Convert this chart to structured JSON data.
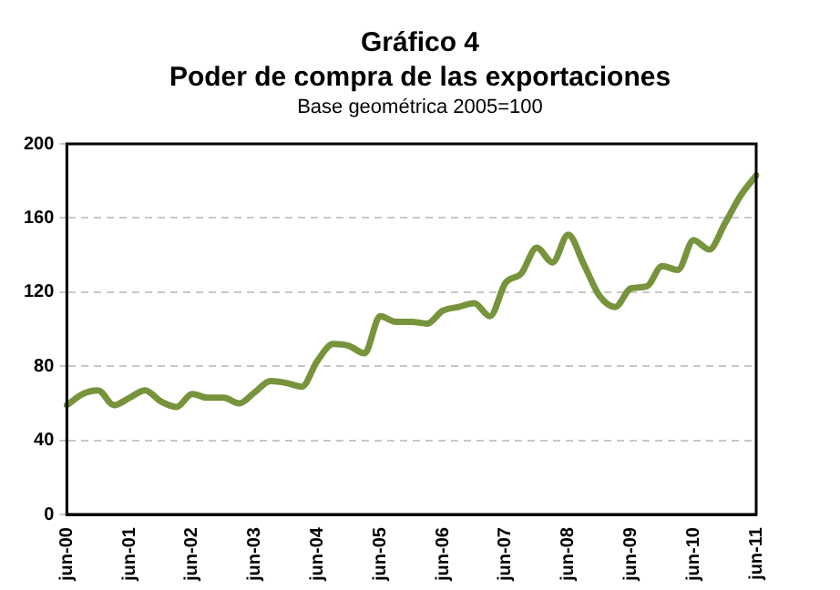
{
  "chart_data": {
    "type": "line",
    "title": "Gráfico 4",
    "subtitle": "Poder de compra de las exportaciones",
    "annotations": [
      "Base geométrica 2005=100"
    ],
    "categories": [
      "jun-00",
      null,
      null,
      null,
      "jun-01",
      null,
      null,
      null,
      "jun-02",
      null,
      null,
      null,
      "jun-03",
      null,
      null,
      null,
      "jun-04",
      null,
      null,
      null,
      "jun-05",
      null,
      null,
      null,
      "jun-06",
      null,
      null,
      null,
      "jun-07",
      null,
      null,
      null,
      "jun-08",
      null,
      null,
      null,
      "jun-09",
      null,
      null,
      null,
      "jun-10",
      null,
      null,
      null,
      "jun-11"
    ],
    "series": [
      {
        "color": "#77933c",
        "values": [
          59,
          65,
          67,
          59,
          63,
          67,
          61,
          58,
          65,
          63,
          63,
          60,
          66,
          72,
          71,
          69,
          83,
          92,
          91,
          87,
          107,
          104,
          104,
          103,
          110,
          112,
          114,
          107,
          125,
          130,
          144,
          136,
          151,
          135,
          118,
          112,
          122,
          123,
          134,
          132,
          148,
          143,
          157,
          172,
          183
        ]
      }
    ],
    "ylim": [
      0,
      200
    ],
    "yticks": [
      0,
      40,
      80,
      120,
      160,
      200
    ],
    "grid": "y",
    "legend": false,
    "marker": "none",
    "line_style": "solid"
  }
}
